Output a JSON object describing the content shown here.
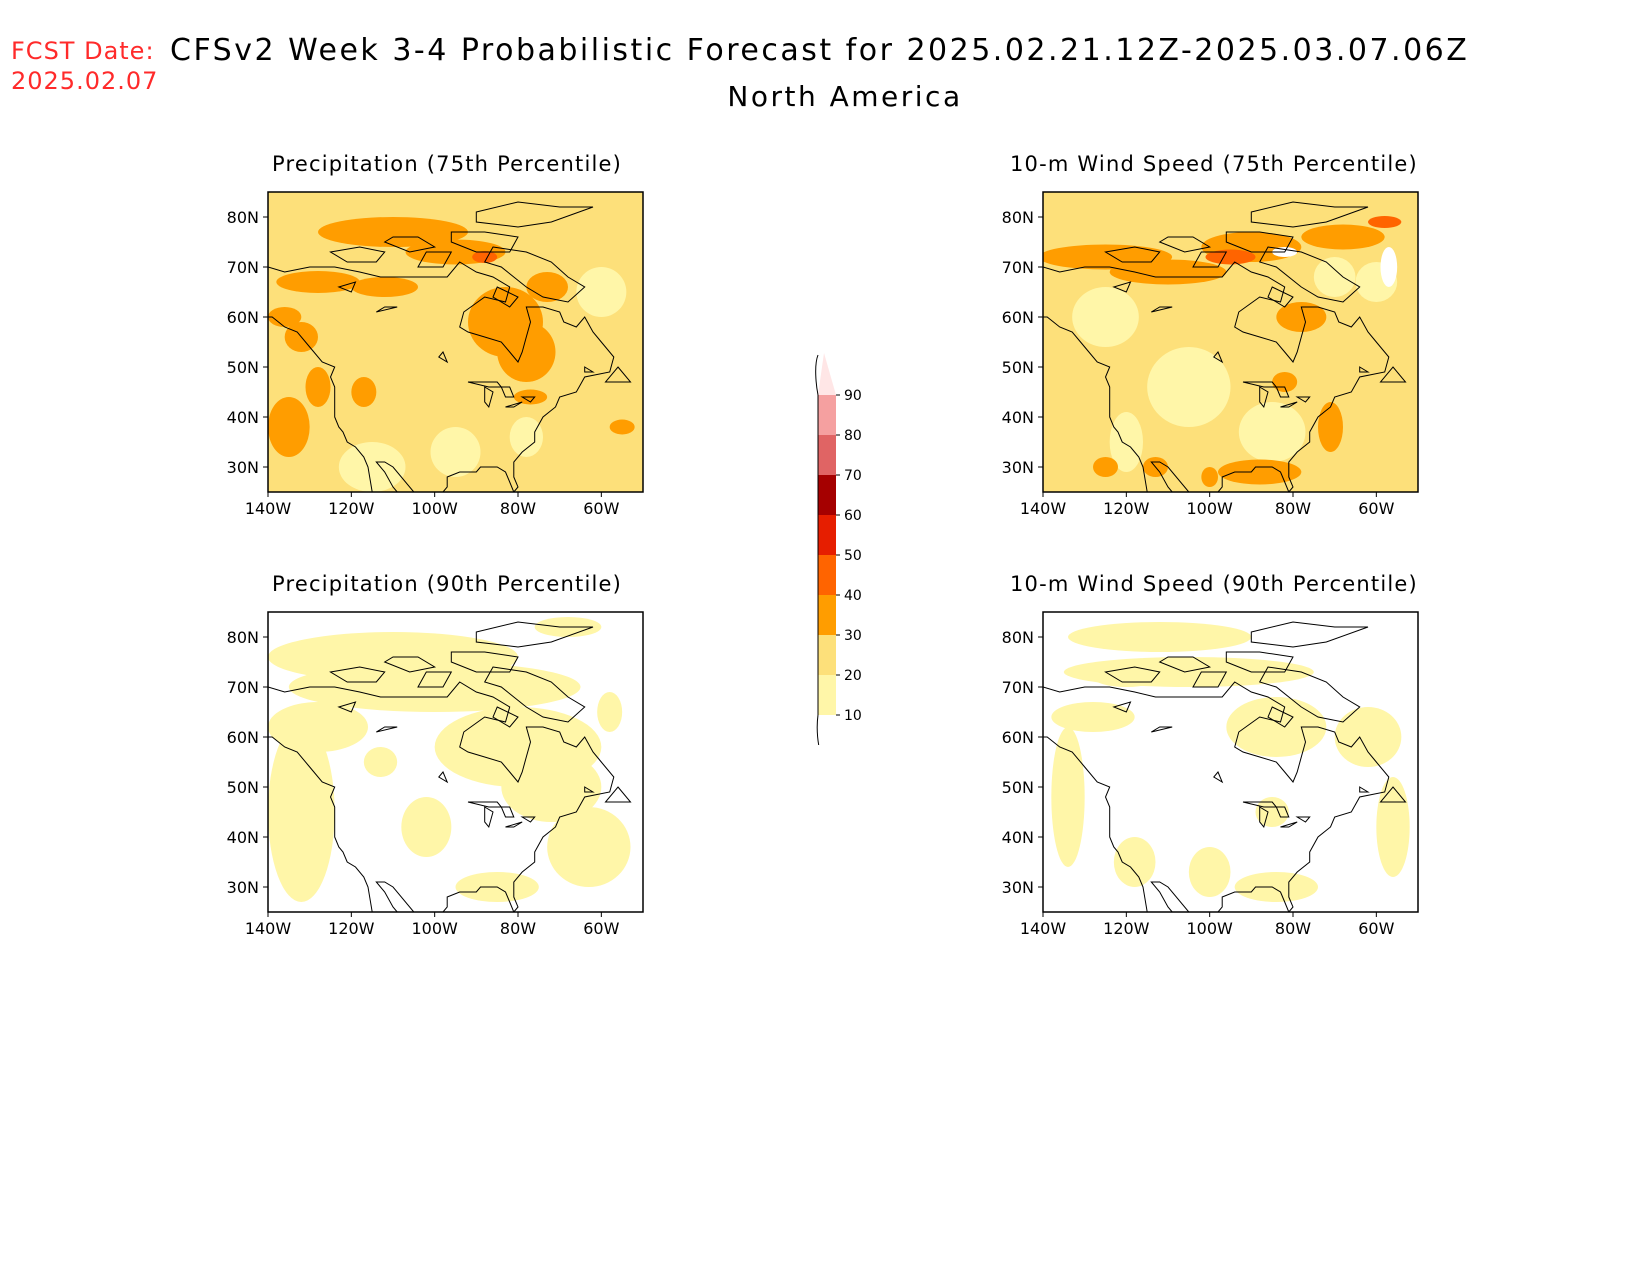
{
  "header": {
    "fcst_label": "FCST Date:",
    "fcst_date": "2025.02.07",
    "title": "CFSv2 Week 3-4 Probabilistic Forecast for 2025.02.21.12Z-2025.03.07.06Z",
    "subtitle": "North America"
  },
  "panels": [
    {
      "id": "precip75",
      "title": "Precipitation (75th Percentile)",
      "dominant_class": "20-30"
    },
    {
      "id": "wind75",
      "title": "10-m Wind Speed (75th Percentile)",
      "dominant_class": "20-30"
    },
    {
      "id": "precip90",
      "title": "Precipitation (90th Percentile)",
      "dominant_class": "10-20"
    },
    {
      "id": "wind90",
      "title": "10-m Wind Speed (90th Percentile)",
      "dominant_class": "<10"
    }
  ],
  "axes": {
    "lat_labels": [
      "80N",
      "70N",
      "60N",
      "50N",
      "40N",
      "30N"
    ],
    "lon_labels": [
      "140W",
      "120W",
      "100W",
      "80W",
      "60W"
    ]
  },
  "colorbar": {
    "labels": [
      "90",
      "80",
      "70",
      "60",
      "50",
      "40",
      "30",
      "20",
      "10"
    ],
    "colors": {
      "10-20": "#fff6a8",
      "20-30": "#fde07a",
      "30-40": "#ff9d00",
      "40-50": "#ff6400",
      "50-60": "#e61e00",
      "60-70": "#a50000",
      "70-80": "#e06464",
      "80-90": "#f5a0a0",
      "90-100": "#ffe6e6"
    }
  }
}
